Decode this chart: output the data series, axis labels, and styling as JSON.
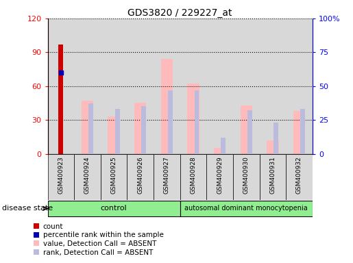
{
  "title": "GDS3820 / 229227_at",
  "samples": [
    "GSM400923",
    "GSM400924",
    "GSM400925",
    "GSM400926",
    "GSM400927",
    "GSM400928",
    "GSM400929",
    "GSM400930",
    "GSM400931",
    "GSM400932"
  ],
  "count_values": [
    97,
    0,
    0,
    0,
    0,
    0,
    0,
    0,
    0,
    0
  ],
  "percentile_rank_values": [
    60,
    0,
    0,
    0,
    0,
    0,
    0,
    0,
    0,
    0
  ],
  "absent_value": [
    0,
    47,
    33,
    45,
    84,
    62,
    5,
    43,
    12,
    38
  ],
  "absent_rank": [
    0,
    37,
    33,
    35,
    47,
    47,
    12,
    32,
    23,
    33
  ],
  "ylim_left": [
    0,
    120
  ],
  "ylim_right": [
    0,
    100
  ],
  "yticks_left": [
    0,
    30,
    60,
    90,
    120
  ],
  "ytick_labels_left": [
    "0",
    "30",
    "60",
    "90",
    "120"
  ],
  "yticks_right": [
    0,
    25,
    50,
    75,
    100
  ],
  "ytick_labels_right": [
    "0",
    "25",
    "50",
    "75",
    "100%"
  ],
  "group_control_label": "control",
  "group_disease_label": "autosomal dominant monocytopenia",
  "disease_state_label": "disease state",
  "color_count": "#cc0000",
  "color_percentile": "#0000bb",
  "color_absent_value": "#ffbbbb",
  "color_absent_rank": "#bbbbdd",
  "legend_labels": [
    "count",
    "percentile rank within the sample",
    "value, Detection Call = ABSENT",
    "rank, Detection Call = ABSENT"
  ],
  "col_bg": "#d8d8d8",
  "plot_bg": "#ffffff"
}
